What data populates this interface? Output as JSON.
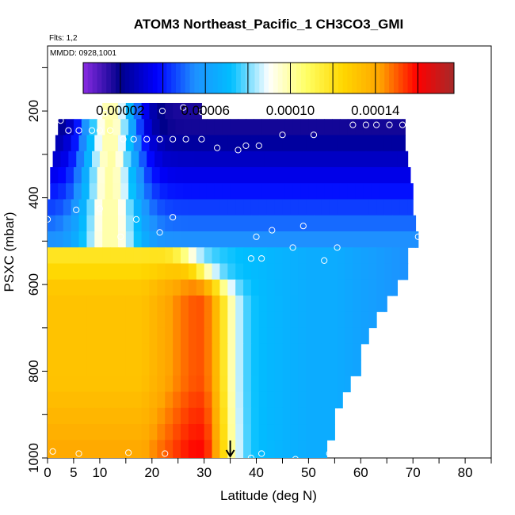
{
  "chart_data": {
    "type": "heatmap",
    "title": "ATOM3 Northeast_Pacific_1 CH3CO3_GMI",
    "flights_label": "Flts: 1,2",
    "dates_label": "MMDD: 0928,1001",
    "xlabel": "Latitude (deg N)",
    "ylabel": "PSXC (mbar)",
    "xlim": [
      0,
      85
    ],
    "ylim": [
      1000,
      50
    ],
    "x_ticks": [
      0,
      5,
      10,
      20,
      30,
      40,
      50,
      60,
      70,
      80
    ],
    "y_ticks": [
      200,
      400,
      600,
      800,
      1000
    ],
    "colorbar": {
      "range": [
        2.5e-06,
        0.000177
      ],
      "tick_labels": [
        "0.00002",
        "0.00006",
        "0.00010",
        "0.00014"
      ],
      "tick_values": [
        2e-05,
        6e-05,
        0.0001,
        0.00014
      ],
      "colors": [
        "#8a2be2",
        "#00008b",
        "#0000ff",
        "#1e90ff",
        "#00bfff",
        "#ffffff",
        "#ffff66",
        "#ffd700",
        "#ffa500",
        "#ff0000",
        "#a52a2a"
      ]
    },
    "marker_latitude": 35,
    "pressure_levels": [
      200,
      237,
      274,
      311,
      348,
      385,
      422,
      459,
      496,
      533,
      570,
      607,
      644,
      681,
      718,
      755,
      792,
      829,
      866,
      903,
      940,
      977
    ],
    "row_extent": [
      {
        "p": 200,
        "lat0": 10.5,
        "lat1": 29.5
      },
      {
        "p": 237,
        "lat0": 2,
        "lat1": 68.5
      },
      {
        "p": 274,
        "lat0": 1.5,
        "lat1": 68.5
      },
      {
        "p": 311,
        "lat0": 1,
        "lat1": 69
      },
      {
        "p": 348,
        "lat0": 0.5,
        "lat1": 69.5
      },
      {
        "p": 385,
        "lat0": 0.5,
        "lat1": 70
      },
      {
        "p": 422,
        "lat0": 0,
        "lat1": 70
      },
      {
        "p": 459,
        "lat0": 0,
        "lat1": 70.5
      },
      {
        "p": 496,
        "lat0": 0,
        "lat1": 71
      },
      {
        "p": 533,
        "lat0": 0,
        "lat1": 69
      },
      {
        "p": 570,
        "lat0": 0,
        "lat1": 69
      },
      {
        "p": 607,
        "lat0": 0,
        "lat1": 67
      },
      {
        "p": 644,
        "lat0": 0,
        "lat1": 65
      },
      {
        "p": 681,
        "lat0": 0,
        "lat1": 63
      },
      {
        "p": 718,
        "lat0": 0,
        "lat1": 61.5
      },
      {
        "p": 755,
        "lat0": 0,
        "lat1": 60
      },
      {
        "p": 792,
        "lat0": 0,
        "lat1": 60
      },
      {
        "p": 829,
        "lat0": 0,
        "lat1": 58
      },
      {
        "p": 866,
        "lat0": 0,
        "lat1": 56.5
      },
      {
        "p": 903,
        "lat0": 0,
        "lat1": 55
      },
      {
        "p": 940,
        "lat0": 0,
        "lat1": 55
      },
      {
        "p": 977,
        "lat0": 0,
        "lat1": 53.5
      }
    ],
    "observations": [
      {
        "lat": 11,
        "p": 205
      },
      {
        "lat": 22,
        "p": 200
      },
      {
        "lat": 26,
        "p": 192
      },
      {
        "lat": 29.5,
        "p": 202
      },
      {
        "lat": 2.5,
        "p": 222
      },
      {
        "lat": 4,
        "p": 245
      },
      {
        "lat": 6,
        "p": 245
      },
      {
        "lat": 8.5,
        "p": 245
      },
      {
        "lat": 10,
        "p": 245
      },
      {
        "lat": 12,
        "p": 245
      },
      {
        "lat": 14.5,
        "p": 265
      },
      {
        "lat": 16.5,
        "p": 265
      },
      {
        "lat": 19,
        "p": 265
      },
      {
        "lat": 21.5,
        "p": 265
      },
      {
        "lat": 24,
        "p": 265
      },
      {
        "lat": 26.5,
        "p": 265
      },
      {
        "lat": 29.5,
        "p": 265
      },
      {
        "lat": 32.5,
        "p": 285
      },
      {
        "lat": 36.5,
        "p": 290
      },
      {
        "lat": 38,
        "p": 280
      },
      {
        "lat": 40.5,
        "p": 280
      },
      {
        "lat": 45,
        "p": 255
      },
      {
        "lat": 51,
        "p": 255
      },
      {
        "lat": 58.5,
        "p": 232
      },
      {
        "lat": 61,
        "p": 232
      },
      {
        "lat": 63,
        "p": 232
      },
      {
        "lat": 65.5,
        "p": 232
      },
      {
        "lat": 68,
        "p": 232
      },
      {
        "lat": 0,
        "p": 450
      },
      {
        "lat": 5.5,
        "p": 428
      },
      {
        "lat": 10,
        "p": 425
      },
      {
        "lat": 17,
        "p": 450
      },
      {
        "lat": 24,
        "p": 445
      },
      {
        "lat": 14,
        "p": 490
      },
      {
        "lat": 21.5,
        "p": 480
      },
      {
        "lat": 40,
        "p": 490
      },
      {
        "lat": 43,
        "p": 475
      },
      {
        "lat": 49,
        "p": 465
      },
      {
        "lat": 47,
        "p": 515
      },
      {
        "lat": 55.5,
        "p": 515
      },
      {
        "lat": 39,
        "p": 540
      },
      {
        "lat": 41,
        "p": 540
      },
      {
        "lat": 53,
        "p": 545
      },
      {
        "lat": 71,
        "p": 490
      },
      {
        "lat": 1,
        "p": 985
      },
      {
        "lat": 6,
        "p": 990
      },
      {
        "lat": 15.5,
        "p": 988
      },
      {
        "lat": 22.5,
        "p": 990
      },
      {
        "lat": 39,
        "p": 1000
      },
      {
        "lat": 41,
        "p": 990
      },
      {
        "lat": 47.5,
        "p": 1003
      },
      {
        "lat": 54,
        "p": 990
      }
    ]
  }
}
